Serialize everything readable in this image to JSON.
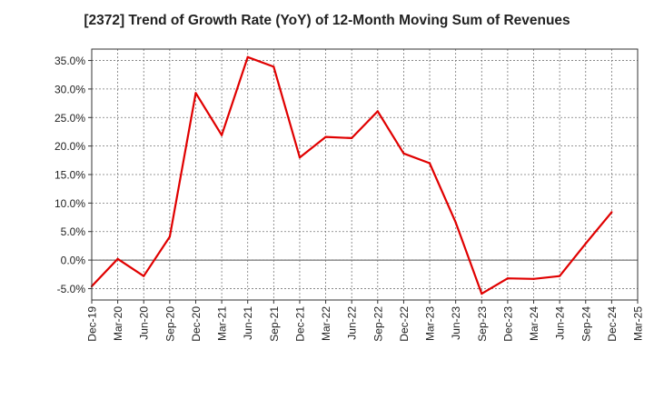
{
  "chart_data": {
    "type": "line",
    "title": "[2372]  Trend of Growth Rate (YoY) of 12-Month Moving Sum of Revenues",
    "xlabel": "",
    "ylabel": "",
    "categories": [
      "Dec-19",
      "Mar-20",
      "Jun-20",
      "Sep-20",
      "Dec-20",
      "Mar-21",
      "Jun-21",
      "Sep-21",
      "Dec-21",
      "Mar-22",
      "Jun-22",
      "Sep-22",
      "Dec-22",
      "Mar-23",
      "Jun-23",
      "Sep-23",
      "Dec-23",
      "Mar-24",
      "Jun-24",
      "Sep-24",
      "Dec-24",
      "Mar-25"
    ],
    "series": [
      {
        "color": "#e00000",
        "values": [
          -4.6,
          0.2,
          -2.8,
          4.1,
          29.3,
          21.9,
          35.6,
          33.9,
          18.0,
          21.6,
          21.4,
          26.1,
          18.7,
          17.0,
          6.6,
          -5.9,
          -3.2,
          -3.3,
          -2.8,
          2.9,
          8.4,
          null
        ]
      }
    ],
    "yticks": [
      "-5.0%",
      "0.0%",
      "5.0%",
      "10.0%",
      "15.0%",
      "20.0%",
      "25.0%",
      "30.0%",
      "35.0%"
    ],
    "ylim": [
      -7,
      37
    ],
    "grid": true,
    "legend": "none"
  }
}
